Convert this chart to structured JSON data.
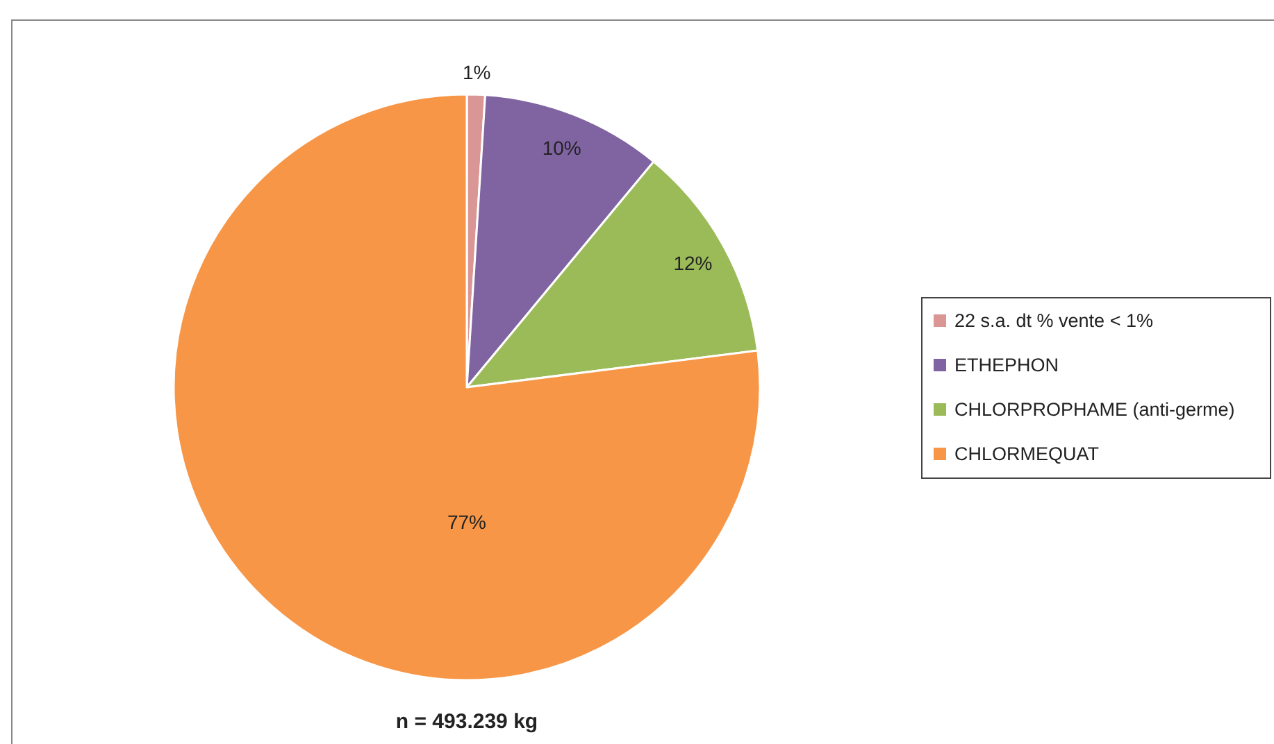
{
  "chart_data": {
    "type": "pie",
    "categories": [
      "22 s.a. dt % vente < 1%",
      "ETHEPHON",
      "CHLORPROPHAME (anti-germe)",
      "CHLORMEQUAT"
    ],
    "values": [
      1,
      10,
      12,
      77
    ],
    "colors": [
      "#d99694",
      "#8064a2",
      "#9bbb59",
      "#f79646"
    ],
    "value_labels": [
      "1%",
      "10%",
      "12%",
      "77%"
    ],
    "legend": "right",
    "annotations": [
      "n = 493.239 kg"
    ]
  }
}
